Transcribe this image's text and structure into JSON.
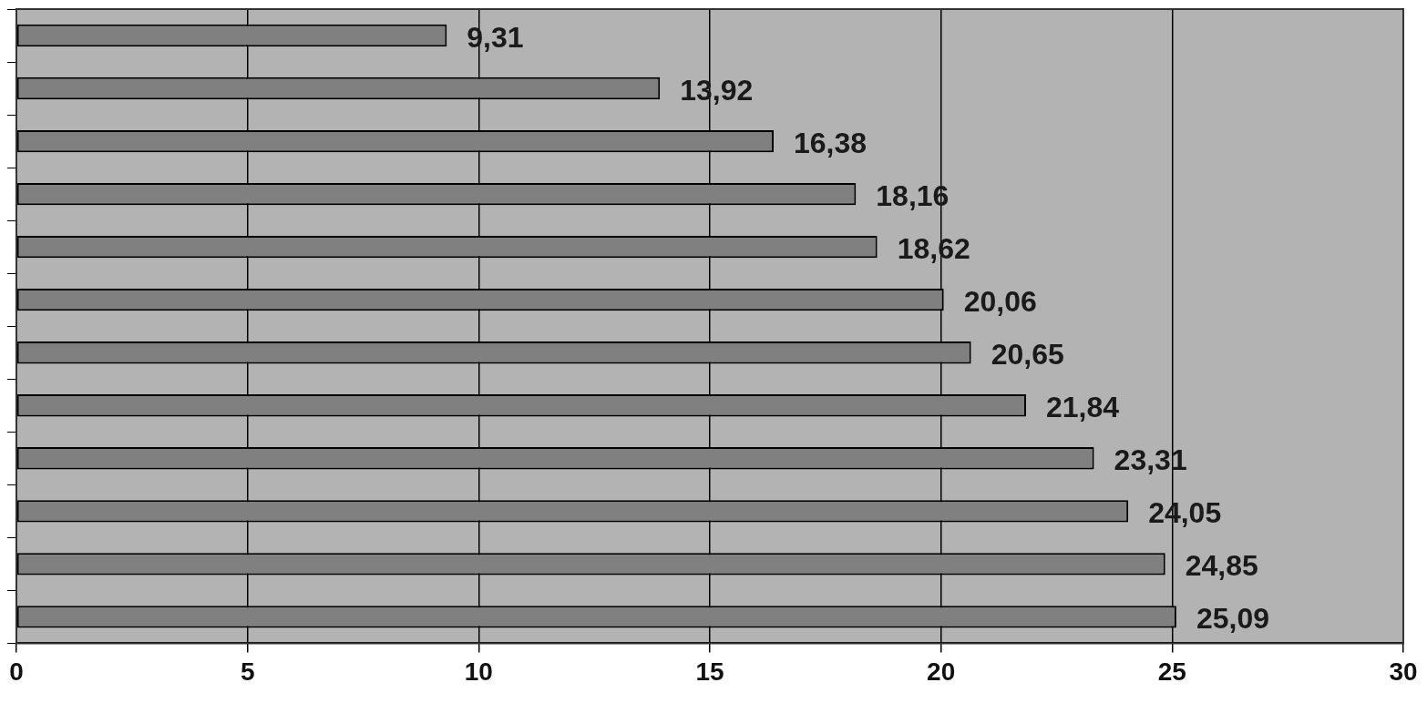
{
  "chart_data": {
    "type": "bar",
    "orientation": "horizontal",
    "categories": [
      null,
      null,
      null,
      null,
      null,
      null,
      null,
      null,
      null,
      null,
      null,
      null
    ],
    "values": [
      9.31,
      13.92,
      16.38,
      18.16,
      18.62,
      20.06,
      20.65,
      21.84,
      23.31,
      24.05,
      24.85,
      25.09
    ],
    "value_labels": [
      "9,31",
      "13,92",
      "16,38",
      "18,16",
      "18,62",
      "20,06",
      "20,65",
      "21,84",
      "23,31",
      "24,05",
      "24,85",
      "25,09"
    ],
    "color": "#808080",
    "xlim": [
      0,
      30
    ],
    "xticks": [
      0,
      5,
      10,
      15,
      20,
      25,
      30
    ],
    "grid": "x",
    "legend": false,
    "tick_labels": "x"
  }
}
